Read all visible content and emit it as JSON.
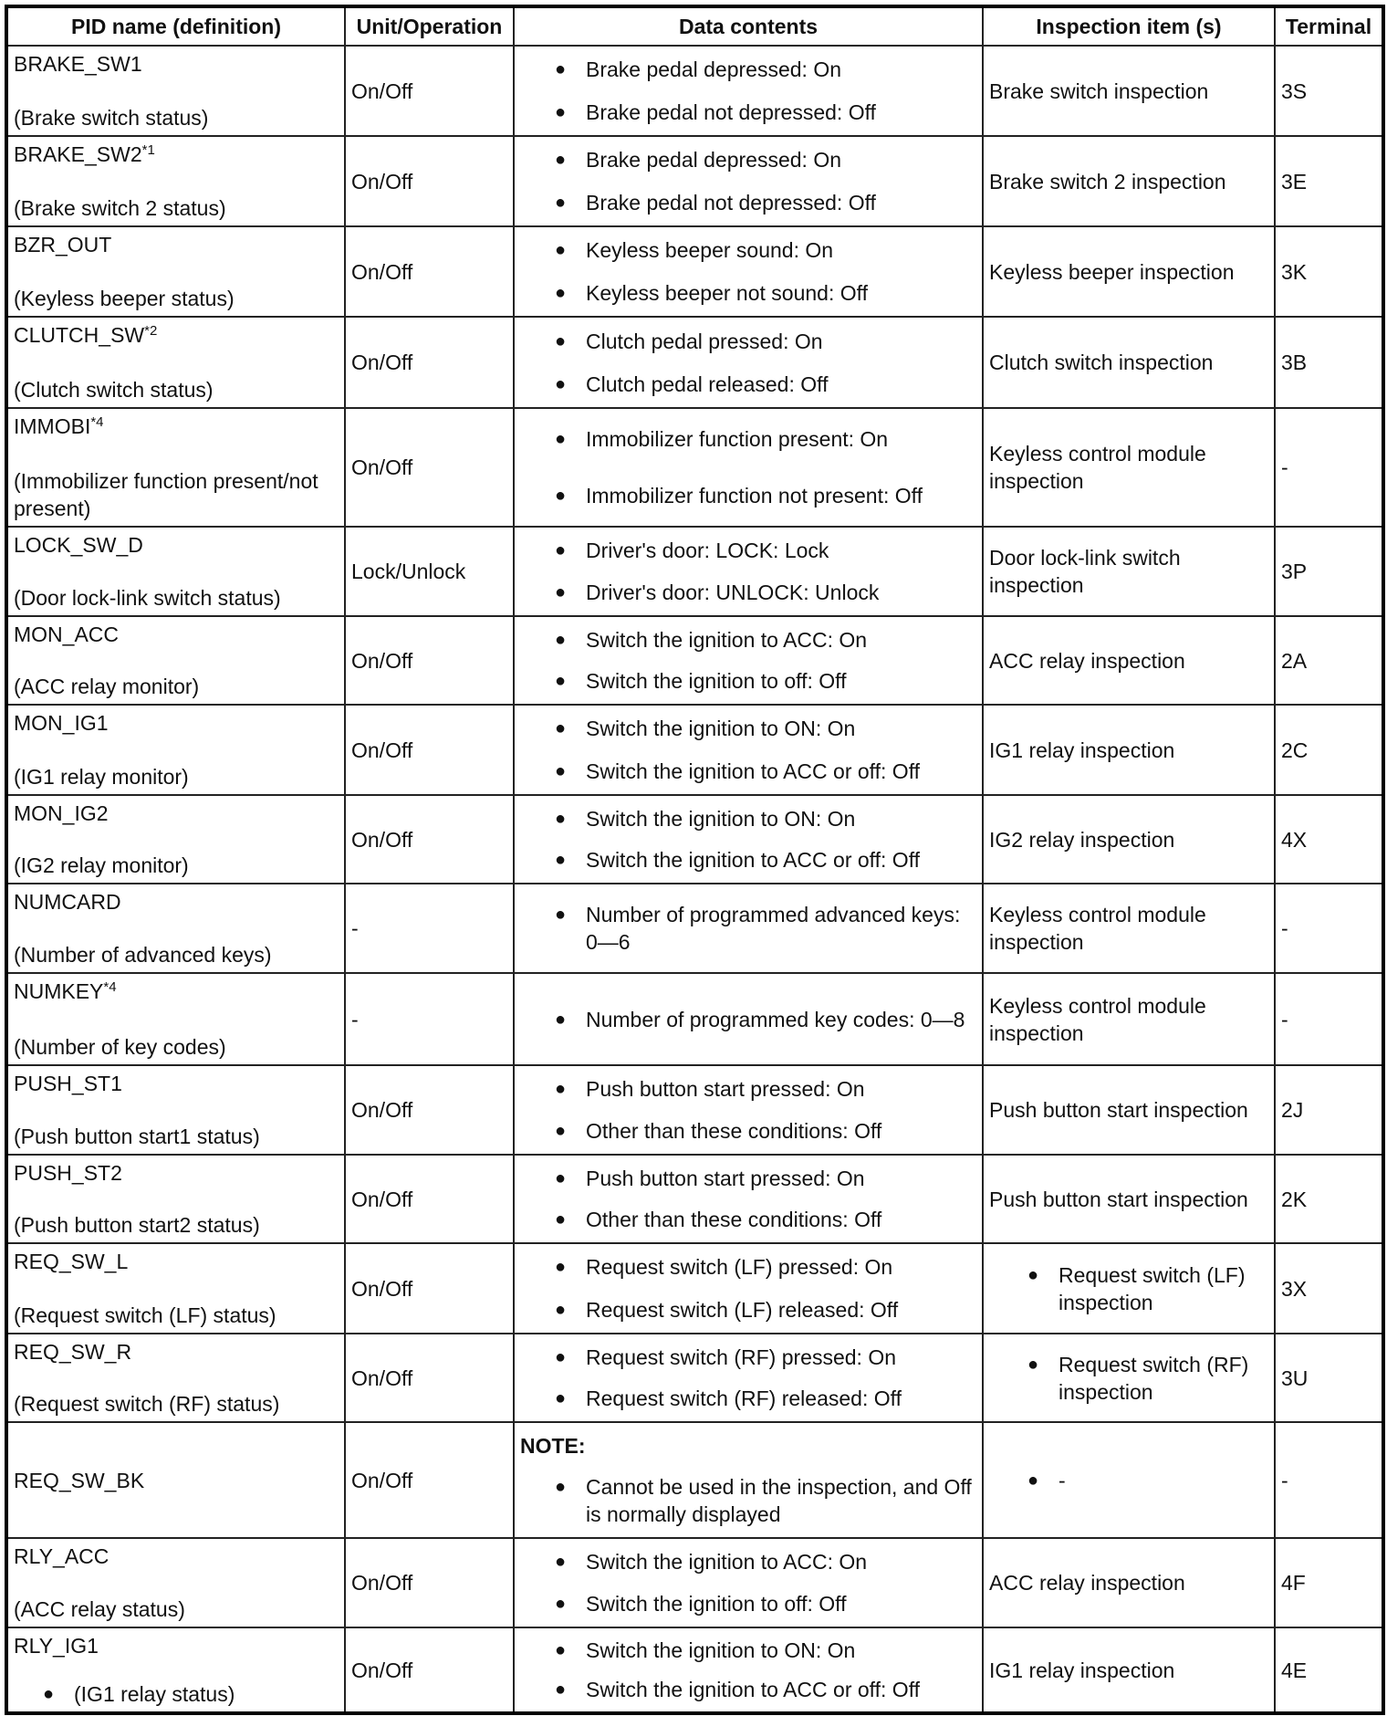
{
  "headers": [
    "PID name (definition)",
    "Unit/Operation",
    "Data contents",
    "Inspection item (s)",
    "Terminal"
  ],
  "rows": [
    {
      "name": "BRAKE_SW1",
      "sup": "",
      "def": "(Brake switch status)",
      "unit": "On/Off",
      "data": [
        "Brake pedal depressed: On",
        "Brake pedal not depressed: Off"
      ],
      "inspection": "Brake switch inspection",
      "terminal": "3S"
    },
    {
      "name": "BRAKE_SW2",
      "sup": "*1",
      "def": "(Brake switch 2 status)",
      "unit": "On/Off",
      "data": [
        "Brake pedal depressed: On",
        "Brake pedal not depressed: Off"
      ],
      "inspection": "Brake switch 2 inspection",
      "terminal": "3E"
    },
    {
      "name": "BZR_OUT",
      "sup": "",
      "def": "(Keyless beeper status)",
      "unit": "On/Off",
      "data": [
        "Keyless beeper sound: On",
        "Keyless beeper not sound: Off"
      ],
      "inspection": "Keyless beeper inspection",
      "terminal": "3K"
    },
    {
      "name": "CLUTCH_SW",
      "sup": "*2",
      "def": "(Clutch switch status)",
      "unit": "On/Off",
      "data": [
        "Clutch pedal pressed: On",
        "Clutch pedal released: Off"
      ],
      "inspection": "Clutch switch inspection",
      "terminal": "3B"
    },
    {
      "name": "IMMOBI",
      "sup": "*4",
      "def": "(Immobilizer function present/not present)",
      "unit": "On/Off",
      "data": [
        "Immobilizer function present: On",
        "Immobilizer function not present: Off"
      ],
      "inspection": "Keyless control module inspection",
      "terminal": "-"
    },
    {
      "name": "LOCK_SW_D",
      "sup": "",
      "def": "(Door lock-link switch status)",
      "unit": "Lock/Unlock",
      "data": [
        "Driver's door: LOCK: Lock",
        "Driver's door: UNLOCK: Unlock"
      ],
      "inspection": "Door lock-link switch inspection",
      "terminal": "3P"
    },
    {
      "name": "MON_ACC",
      "sup": "",
      "def": "(ACC relay monitor)",
      "unit": "On/Off",
      "data": [
        "Switch the ignition to ACC: On",
        "Switch the ignition to off: Off"
      ],
      "inspection": "ACC relay inspection",
      "terminal": "2A"
    },
    {
      "name": "MON_IG1",
      "sup": "",
      "def": "(IG1 relay monitor)",
      "unit": "On/Off",
      "data": [
        "Switch the ignition to ON: On",
        "Switch the ignition to ACC or off: Off"
      ],
      "inspection": "IG1 relay inspection",
      "terminal": "2C"
    },
    {
      "name": "MON_IG2",
      "sup": "",
      "def": "(IG2 relay monitor)",
      "unit": "On/Off",
      "data": [
        "Switch the ignition to ON: On",
        "Switch the ignition to ACC or off: Off"
      ],
      "inspection": "IG2 relay inspection",
      "terminal": "4X"
    },
    {
      "name": "NUMCARD",
      "sup": "",
      "def": "(Number of advanced keys)",
      "unit": "-",
      "data": [
        "Number of programmed advanced keys: 0—6"
      ],
      "inspection": "Keyless control module inspection",
      "terminal": "-"
    },
    {
      "name": "NUMKEY",
      "sup": "*4",
      "def": "(Number of key codes)",
      "unit": "-",
      "data": [
        "Number of programmed key codes: 0—8"
      ],
      "inspection": "Keyless control module inspection",
      "terminal": "-"
    },
    {
      "name": "PUSH_ST1",
      "sup": "",
      "def": "(Push button start1 status)",
      "unit": "On/Off",
      "data": [
        "Push button start pressed: On",
        "Other than these conditions: Off"
      ],
      "inspection": "Push button start inspection",
      "terminal": "2J"
    },
    {
      "name": "PUSH_ST2",
      "sup": "",
      "def": "(Push button start2 status)",
      "unit": "On/Off",
      "data": [
        "Push button start pressed: On",
        "Other than these conditions: Off"
      ],
      "inspection": "Push button start inspection",
      "terminal": "2K"
    },
    {
      "name": "REQ_SW_L",
      "sup": "",
      "def": "(Request switch (LF) status)",
      "unit": "On/Off",
      "data": [
        "Request switch (LF) pressed: On",
        "Request switch (LF) released: Off"
      ],
      "inspection_bullet": "Request switch (LF) inspection",
      "terminal": "3X"
    },
    {
      "name": "REQ_SW_R",
      "sup": "",
      "def": "(Request switch (RF) status)",
      "unit": "On/Off",
      "data": [
        "Request switch (RF) pressed: On",
        "Request switch (RF) released: Off"
      ],
      "inspection_bullet": "Request switch (RF) inspection",
      "terminal": "3U"
    },
    {
      "name": "REQ_SW_BK",
      "sup": "",
      "def": "",
      "unit": "On/Off",
      "note": "NOTE:",
      "data": [
        "Cannot be used in the inspection, and Off is normally displayed"
      ],
      "inspection_bullet": "-",
      "terminal": "-"
    },
    {
      "name": "RLY_ACC",
      "sup": "",
      "def": "(ACC relay status)",
      "unit": "On/Off",
      "data": [
        "Switch the ignition to ACC: On",
        "Switch the ignition to off: Off"
      ],
      "inspection": "ACC relay inspection",
      "terminal": "4F"
    },
    {
      "name": "RLY_IG1",
      "sup": "",
      "def": "(IG1 relay status)",
      "def_bullet": true,
      "unit": "On/Off",
      "data": [
        "Switch the ignition to ON: On",
        "Switch the ignition to ACC or off: Off"
      ],
      "inspection": "IG1 relay inspection",
      "terminal": "4E"
    }
  ]
}
